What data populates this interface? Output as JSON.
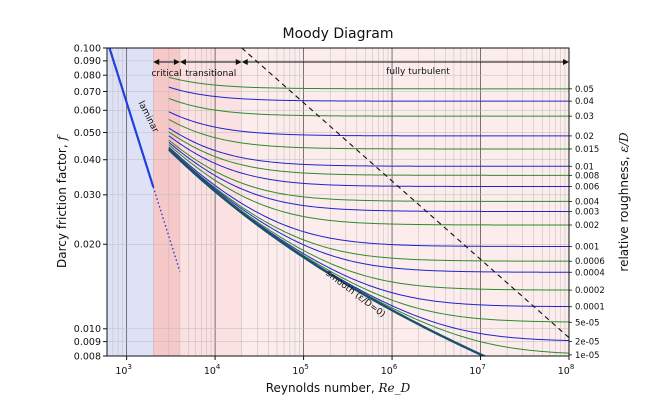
{
  "chart_data": {
    "type": "line",
    "title": "Moody Diagram",
    "xlabel": "Reynolds number, Re_D",
    "ylabel": "Darcy friction factor, f",
    "y2label": "relative roughness, ε/D",
    "xscale": "log",
    "yscale": "log",
    "xlim": [
      600,
      100000000
    ],
    "ylim": [
      0.008,
      0.1
    ],
    "x_tick_labels": [
      {
        "base": "10",
        "exp": "3",
        "value": 1000
      },
      {
        "base": "10",
        "exp": "4",
        "value": 10000
      },
      {
        "base": "10",
        "exp": "5",
        "value": 100000
      },
      {
        "base": "10",
        "exp": "6",
        "value": 1000000
      },
      {
        "base": "10",
        "exp": "7",
        "value": 10000000
      },
      {
        "base": "10",
        "exp": "8",
        "value": 100000000
      }
    ],
    "y_tick_labels": [
      "0.100",
      "0.090",
      "0.080",
      "0.070",
      "0.060",
      "0.050",
      "0.040",
      "0.030",
      "0.020",
      "0.010",
      "0.009",
      "0.008"
    ],
    "regions": [
      {
        "label": "laminar",
        "from": 600,
        "to": 2000,
        "color": "#dfe2f7"
      },
      {
        "label": "critical",
        "from": 2000,
        "to": 4000,
        "color": "#f6c8c8"
      },
      {
        "label": "transitional",
        "from": 4000,
        "to": 20000,
        "color": "#fbe1e1"
      },
      {
        "label": "fully turbulent",
        "from": 20000,
        "to": 100000000,
        "color": "#fcecec"
      }
    ],
    "annotations": {
      "laminar": "laminar",
      "critical": "critical",
      "transitional": "transitional",
      "fully_turbulent": "fully turbulent",
      "smooth": "smooth (ε/D=0)"
    },
    "laminar_line": {
      "x": [
        600,
        2000
      ],
      "extension_x": [
        2000,
        4000
      ],
      "formula": "f = 64/Re"
    },
    "smooth_curve": {
      "x_start": 3000,
      "x_end": 100000000
    },
    "roughness_series": [
      {
        "label": "0.05",
        "rel_roughness": 0.05,
        "color": "#2e8b2e"
      },
      {
        "label": "0.04",
        "rel_roughness": 0.04,
        "color": "#2222cc"
      },
      {
        "label": "0.03",
        "rel_roughness": 0.03,
        "color": "#2e8b2e"
      },
      {
        "label": "0.02",
        "rel_roughness": 0.02,
        "color": "#2222cc"
      },
      {
        "label": "0.015",
        "rel_roughness": 0.015,
        "color": "#2e8b2e"
      },
      {
        "label": "0.01",
        "rel_roughness": 0.01,
        "color": "#2222cc"
      },
      {
        "label": "0.008",
        "rel_roughness": 0.008,
        "color": "#2e8b2e"
      },
      {
        "label": "0.006",
        "rel_roughness": 0.006,
        "color": "#2222cc"
      },
      {
        "label": "0.004",
        "rel_roughness": 0.004,
        "color": "#2e8b2e"
      },
      {
        "label": "0.003",
        "rel_roughness": 0.003,
        "color": "#2222cc"
      },
      {
        "label": "0.002",
        "rel_roughness": 0.002,
        "color": "#2e8b2e"
      },
      {
        "label": "0.001",
        "rel_roughness": 0.001,
        "color": "#2222cc"
      },
      {
        "label": "0.0006",
        "rel_roughness": 0.0006,
        "color": "#2e8b2e"
      },
      {
        "label": "0.0004",
        "rel_roughness": 0.0004,
        "color": "#2222cc"
      },
      {
        "label": "0.0002",
        "rel_roughness": 0.0002,
        "color": "#2e8b2e"
      },
      {
        "label": "0.0001",
        "rel_roughness": 0.0001,
        "color": "#2222cc"
      },
      {
        "label": "5e-05",
        "rel_roughness": 5e-05,
        "color": "#2e8b2e"
      },
      {
        "label": "2e-05",
        "rel_roughness": 2e-05,
        "color": "#2222cc"
      },
      {
        "label": "1e-05",
        "rel_roughness": 1e-05,
        "color": "#2e8b2e"
      }
    ],
    "grid": true
  }
}
